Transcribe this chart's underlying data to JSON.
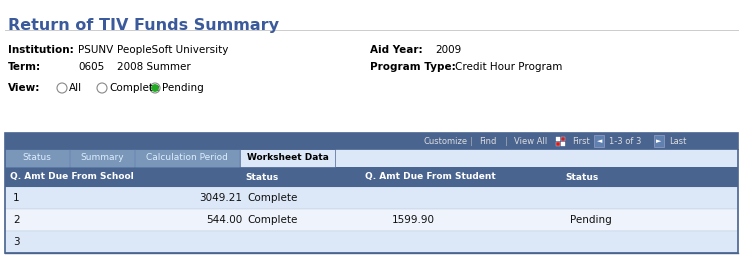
{
  "title": "Return of TIV Funds Summary",
  "title_color": "#3a5a9c",
  "title_fontsize": 11.5,
  "page_bg": "#ffffff",
  "fig_width": 7.43,
  "fig_height": 2.56,
  "dpi": 100,
  "institution_label": "Institution:",
  "institution_code": "PSUNV",
  "institution_name": "PeopleSoft University",
  "term_label": "Term:",
  "term_code": "0605",
  "term_name": "2008 Summer",
  "aid_year_label": "Aid Year:",
  "aid_year_val": "2009",
  "prog_type_label": "Program Type:",
  "prog_type_val": "Credit Hour Program",
  "view_label": "View:",
  "radio_options": [
    "All",
    "Complete",
    "Pending"
  ],
  "radio_selected": 2,
  "toolbar_bg": "#4a6490",
  "tabs": [
    "Status",
    "Summary",
    "Calculation Period",
    "Worksheet Data"
  ],
  "active_tab": 3,
  "tab_bg_inactive": "#7a96b8",
  "tab_bg_active": "#dce8f8",
  "tab_text_inactive": "#ddeeff",
  "tab_text_active": "#000000",
  "header_bg": "#4a6490",
  "col_headers": [
    "Q. Amt Due From School",
    "Status",
    "Q. Amt Due From Student",
    "Status"
  ],
  "row_bg_light": "#dce8f8",
  "row_bg_white": "#ffffff",
  "row_data": [
    [
      "1",
      "3049.21",
      "Complete",
      "",
      ""
    ],
    [
      "2",
      "544.00",
      "Complete",
      "1599.90",
      "Pending"
    ],
    [
      "3",
      "",
      "",
      "",
      ""
    ]
  ],
  "border_color": "#4a6490",
  "customize_text": "Customize",
  "find_text": "Find",
  "viewall_text": "View All",
  "nav_text_first": "First",
  "nav_text_page": "1-3 of 3",
  "nav_text_last": "Last"
}
